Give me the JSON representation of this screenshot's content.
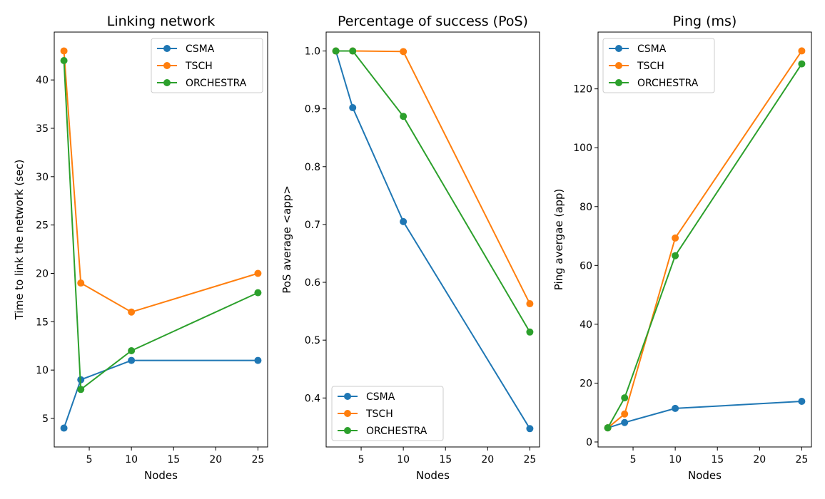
{
  "colors": {
    "CSMA": "#1f77b4",
    "TSCH": "#ff7f0e",
    "ORCHESTRA": "#2ca02c"
  },
  "chart_data": [
    {
      "type": "line",
      "title": "Linking network",
      "xlabel": "Nodes",
      "ylabel": "Time to link the network (sec)",
      "x": [
        2,
        4,
        10,
        25
      ],
      "xlim": [
        0.85,
        26.15
      ],
      "ylim": [
        2.05,
        44.95
      ],
      "xticks": [
        5,
        10,
        15,
        20,
        25
      ],
      "yticks": [
        5,
        10,
        15,
        20,
        25,
        30,
        35,
        40
      ],
      "legend_position": "top-right",
      "series": [
        {
          "name": "CSMA",
          "values": [
            4,
            9,
            11,
            11
          ]
        },
        {
          "name": "TSCH",
          "values": [
            43,
            19,
            16,
            20
          ]
        },
        {
          "name": "ORCHESTRA",
          "values": [
            42,
            8,
            12,
            18
          ]
        }
      ]
    },
    {
      "type": "line",
      "title": "Percentage of success (PoS)",
      "xlabel": "Nodes",
      "ylabel": "PoS average <app>",
      "x": [
        2,
        4,
        10,
        25
      ],
      "xlim": [
        0.85,
        26.15
      ],
      "ylim": [
        0.3153,
        1.0327
      ],
      "xticks": [
        5,
        10,
        15,
        20,
        25
      ],
      "yticks": [
        0.4,
        0.5,
        0.6,
        0.7,
        0.8,
        0.9,
        1.0
      ],
      "legend_position": "bottom-left",
      "series": [
        {
          "name": "CSMA",
          "values": [
            1.0,
            0.902,
            0.705,
            0.347
          ]
        },
        {
          "name": "TSCH",
          "values": [
            1.0,
            1.0,
            0.999,
            0.563
          ]
        },
        {
          "name": "ORCHESTRA",
          "values": [
            1.0,
            1.0,
            0.887,
            0.514
          ]
        }
      ]
    },
    {
      "type": "line",
      "title": "Ping (ms)",
      "xlabel": "Nodes",
      "ylabel": "Ping avergae (app)",
      "x": [
        2,
        4,
        10,
        25
      ],
      "xlim": [
        0.85,
        26.15
      ],
      "ylim": [
        -1.7,
        139.3
      ],
      "xticks": [
        5,
        10,
        15,
        20,
        25
      ],
      "yticks": [
        0,
        20,
        40,
        60,
        80,
        100,
        120
      ],
      "legend_position": "top-left",
      "series": [
        {
          "name": "CSMA",
          "values": [
            4.8,
            6.6,
            11.4,
            13.8
          ]
        },
        {
          "name": "TSCH",
          "values": [
            4.8,
            9.5,
            69.3,
            132.9
          ]
        },
        {
          "name": "ORCHESTRA",
          "values": [
            4.8,
            15.0,
            63.3,
            128.5
          ]
        }
      ]
    }
  ]
}
